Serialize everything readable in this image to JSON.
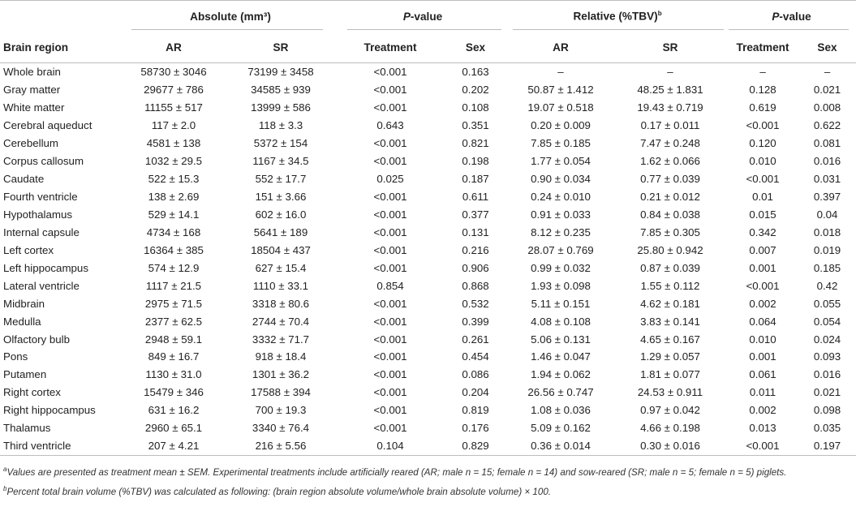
{
  "header": {
    "absolute": "Absolute (mm³)",
    "pvalue_p": "P",
    "pvalue_rest": "-value",
    "relative": "Relative (%TBV)",
    "relative_sup": "b",
    "pvalue2_p": "P",
    "pvalue2_rest": "-value",
    "brain_region": "Brain region",
    "ar1": "AR",
    "sr1": "SR",
    "treatment1": "Treatment",
    "sex1": "Sex",
    "ar2": "AR",
    "sr2": "SR",
    "treatment2": "Treatment",
    "sex2": "Sex"
  },
  "rows": [
    {
      "region": "Whole brain",
      "abs_ar": "58730 ± 3046",
      "abs_sr": "73199 ± 3458",
      "p_treat": "<0.001",
      "p_sex": "0.163",
      "rel_ar": "–",
      "rel_sr": "–",
      "p2_treat": "–",
      "p2_sex": "–"
    },
    {
      "region": "Gray matter",
      "abs_ar": "29677 ± 786",
      "abs_sr": "34585 ± 939",
      "p_treat": "<0.001",
      "p_sex": "0.202",
      "rel_ar": "50.87 ± 1.412",
      "rel_sr": "48.25 ± 1.831",
      "p2_treat": "0.128",
      "p2_sex": "0.021"
    },
    {
      "region": "White matter",
      "abs_ar": "11155 ± 517",
      "abs_sr": "13999 ± 586",
      "p_treat": "<0.001",
      "p_sex": "0.108",
      "rel_ar": "19.07 ± 0.518",
      "rel_sr": "19.43 ± 0.719",
      "p2_treat": "0.619",
      "p2_sex": "0.008"
    },
    {
      "region": "Cerebral aqueduct",
      "abs_ar": "117 ± 2.0",
      "abs_sr": "118 ± 3.3",
      "p_treat": "0.643",
      "p_sex": "0.351",
      "rel_ar": "0.20 ± 0.009",
      "rel_sr": "0.17 ± 0.011",
      "p2_treat": "<0.001",
      "p2_sex": "0.622"
    },
    {
      "region": "Cerebellum",
      "abs_ar": "4581 ± 138",
      "abs_sr": "5372 ± 154",
      "p_treat": "<0.001",
      "p_sex": "0.821",
      "rel_ar": "7.85 ± 0.185",
      "rel_sr": "7.47 ± 0.248",
      "p2_treat": "0.120",
      "p2_sex": "0.081"
    },
    {
      "region": "Corpus callosum",
      "abs_ar": "1032 ± 29.5",
      "abs_sr": "1167 ± 34.5",
      "p_treat": "<0.001",
      "p_sex": "0.198",
      "rel_ar": "1.77 ± 0.054",
      "rel_sr": "1.62 ± 0.066",
      "p2_treat": "0.010",
      "p2_sex": "0.016"
    },
    {
      "region": "Caudate",
      "abs_ar": "522 ± 15.3",
      "abs_sr": "552 ± 17.7",
      "p_treat": "0.025",
      "p_sex": "0.187",
      "rel_ar": "0.90 ± 0.034",
      "rel_sr": "0.77 ± 0.039",
      "p2_treat": "<0.001",
      "p2_sex": "0.031"
    },
    {
      "region": "Fourth ventricle",
      "abs_ar": "138 ± 2.69",
      "abs_sr": "151 ± 3.66",
      "p_treat": "<0.001",
      "p_sex": "0.611",
      "rel_ar": "0.24 ± 0.010",
      "rel_sr": "0.21 ± 0.012",
      "p2_treat": "0.01",
      "p2_sex": "0.397"
    },
    {
      "region": "Hypothalamus",
      "abs_ar": "529 ± 14.1",
      "abs_sr": "602 ± 16.0",
      "p_treat": "<0.001",
      "p_sex": "0.377",
      "rel_ar": "0.91 ± 0.033",
      "rel_sr": "0.84 ± 0.038",
      "p2_treat": "0.015",
      "p2_sex": "0.04"
    },
    {
      "region": "Internal capsule",
      "abs_ar": "4734 ± 168",
      "abs_sr": "5641 ± 189",
      "p_treat": "<0.001",
      "p_sex": "0.131",
      "rel_ar": "8.12 ± 0.235",
      "rel_sr": "7.85 ± 0.305",
      "p2_treat": "0.342",
      "p2_sex": "0.018"
    },
    {
      "region": "Left cortex",
      "abs_ar": "16364 ± 385",
      "abs_sr": "18504 ± 437",
      "p_treat": "<0.001",
      "p_sex": "0.216",
      "rel_ar": "28.07 ± 0.769",
      "rel_sr": "25.80 ± 0.942",
      "p2_treat": "0.007",
      "p2_sex": "0.019"
    },
    {
      "region": "Left hippocampus",
      "abs_ar": "574 ± 12.9",
      "abs_sr": "627 ± 15.4",
      "p_treat": "<0.001",
      "p_sex": "0.906",
      "rel_ar": "0.99 ± 0.032",
      "rel_sr": "0.87 ± 0.039",
      "p2_treat": "0.001",
      "p2_sex": "0.185"
    },
    {
      "region": "Lateral ventricle",
      "abs_ar": "1117 ± 21.5",
      "abs_sr": "1110 ± 33.1",
      "p_treat": "0.854",
      "p_sex": "0.868",
      "rel_ar": "1.93 ± 0.098",
      "rel_sr": "1.55 ± 0.112",
      "p2_treat": "<0.001",
      "p2_sex": "0.42"
    },
    {
      "region": "Midbrain",
      "abs_ar": "2975 ± 71.5",
      "abs_sr": "3318 ± 80.6",
      "p_treat": "<0.001",
      "p_sex": "0.532",
      "rel_ar": "5.11 ± 0.151",
      "rel_sr": "4.62 ± 0.181",
      "p2_treat": "0.002",
      "p2_sex": "0.055"
    },
    {
      "region": "Medulla",
      "abs_ar": "2377 ± 62.5",
      "abs_sr": "2744 ± 70.4",
      "p_treat": "<0.001",
      "p_sex": "0.399",
      "rel_ar": "4.08 ± 0.108",
      "rel_sr": "3.83 ± 0.141",
      "p2_treat": "0.064",
      "p2_sex": "0.054"
    },
    {
      "region": "Olfactory bulb",
      "abs_ar": "2948 ± 59.1",
      "abs_sr": "3332 ± 71.7",
      "p_treat": "<0.001",
      "p_sex": "0.261",
      "rel_ar": "5.06 ± 0.131",
      "rel_sr": "4.65 ± 0.167",
      "p2_treat": "0.010",
      "p2_sex": "0.024"
    },
    {
      "region": "Pons",
      "abs_ar": "849 ± 16.7",
      "abs_sr": "918 ± 18.4",
      "p_treat": "<0.001",
      "p_sex": "0.454",
      "rel_ar": "1.46 ± 0.047",
      "rel_sr": "1.29 ± 0.057",
      "p2_treat": "0.001",
      "p2_sex": "0.093"
    },
    {
      "region": "Putamen",
      "abs_ar": "1130 ± 31.0",
      "abs_sr": "1301 ± 36.2",
      "p_treat": "<0.001",
      "p_sex": "0.086",
      "rel_ar": "1.94 ± 0.062",
      "rel_sr": "1.81 ± 0.077",
      "p2_treat": "0.061",
      "p2_sex": "0.016"
    },
    {
      "region": "Right cortex",
      "abs_ar": "15479 ± 346",
      "abs_sr": "17588 ± 394",
      "p_treat": "<0.001",
      "p_sex": "0.204",
      "rel_ar": "26.56 ± 0.747",
      "rel_sr": "24.53 ± 0.911",
      "p2_treat": "0.011",
      "p2_sex": "0.021"
    },
    {
      "region": "Right hippocampus",
      "abs_ar": "631 ± 16.2",
      "abs_sr": "700 ± 19.3",
      "p_treat": "<0.001",
      "p_sex": "0.819",
      "rel_ar": "1.08 ± 0.036",
      "rel_sr": "0.97 ± 0.042",
      "p2_treat": "0.002",
      "p2_sex": "0.098"
    },
    {
      "region": "Thalamus",
      "abs_ar": "2960 ± 65.1",
      "abs_sr": "3340 ± 76.4",
      "p_treat": "<0.001",
      "p_sex": "0.176",
      "rel_ar": "5.09 ± 0.162",
      "rel_sr": "4.66 ± 0.198",
      "p2_treat": "0.013",
      "p2_sex": "0.035"
    },
    {
      "region": "Third ventricle",
      "abs_ar": "207 ± 4.21",
      "abs_sr": "216 ± 5.56",
      "p_treat": "0.104",
      "p_sex": "0.829",
      "rel_ar": "0.36 ± 0.014",
      "rel_sr": "0.30 ± 0.016",
      "p2_treat": "<0.001",
      "p2_sex": "0.197"
    }
  ],
  "footnotes": {
    "a_sup": "a",
    "a_text": "Values are presented as treatment mean ± SEM. Experimental treatments include artificially reared (AR; male n = 15; female n = 14) and sow-reared (SR; male n = 5; female n = 5) piglets.",
    "b_sup": "b",
    "b_text": "Percent total brain volume (%TBV) was calculated as following: (brain region absolute volume/whole brain absolute volume) × 100."
  }
}
